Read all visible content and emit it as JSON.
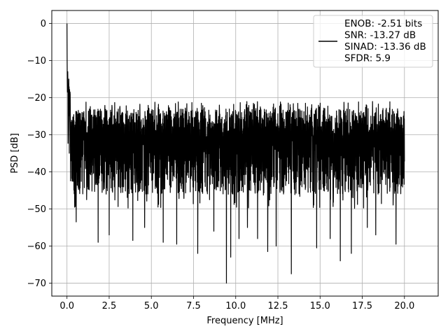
{
  "chart_data": {
    "type": "line",
    "xlabel": "Frequency [MHz]",
    "ylabel": "PSD [dB]",
    "xlim": [
      -0.9,
      22.0
    ],
    "ylim": [
      -73.5,
      3.5
    ],
    "xticks": [
      0.0,
      2.5,
      5.0,
      7.5,
      10.0,
      12.5,
      15.0,
      17.5,
      20.0
    ],
    "xtick_labels": [
      "0.0",
      "2.5",
      "5.0",
      "7.5",
      "10.0",
      "12.5",
      "15.0",
      "17.5",
      "20.0"
    ],
    "yticks": [
      0,
      -10,
      -20,
      -30,
      -40,
      -50,
      -60,
      -70
    ],
    "ytick_labels": [
      "0",
      "−10",
      "−20",
      "−30",
      "−40",
      "−50",
      "−60",
      "−70"
    ],
    "grid": true,
    "legend_position": "top-right",
    "legend_entries": [
      "ENOB: -2.51 bits",
      "SNR: -13.27 dB",
      "SINAD: -13.36 dB",
      "SFDR: 5.9"
    ],
    "series": [
      {
        "color": "#000000",
        "x_start": 0.0,
        "x_end": 20.0,
        "peak": [
          0.0,
          0.0
        ],
        "noise_floor_range": [
          -50,
          -21
        ],
        "deep_dips": [
          [
            0.55,
            -53.5
          ],
          [
            1.85,
            -59
          ],
          [
            2.5,
            -57
          ],
          [
            3.9,
            -58.5
          ],
          [
            4.6,
            -55
          ],
          [
            5.7,
            -59
          ],
          [
            6.5,
            -59.5
          ],
          [
            7.75,
            -62
          ],
          [
            8.7,
            -56
          ],
          [
            9.45,
            -70
          ],
          [
            9.7,
            -63
          ],
          [
            10.2,
            -58
          ],
          [
            10.7,
            -55
          ],
          [
            11.3,
            -58
          ],
          [
            11.9,
            -61.5
          ],
          [
            12.4,
            -60
          ],
          [
            13.3,
            -67.5
          ],
          [
            14.8,
            -60.5
          ],
          [
            15.6,
            -58
          ],
          [
            16.2,
            -64
          ],
          [
            16.85,
            -62
          ],
          [
            17.8,
            -55
          ],
          [
            18.3,
            -57
          ],
          [
            19.5,
            -59.5
          ]
        ]
      }
    ]
  }
}
